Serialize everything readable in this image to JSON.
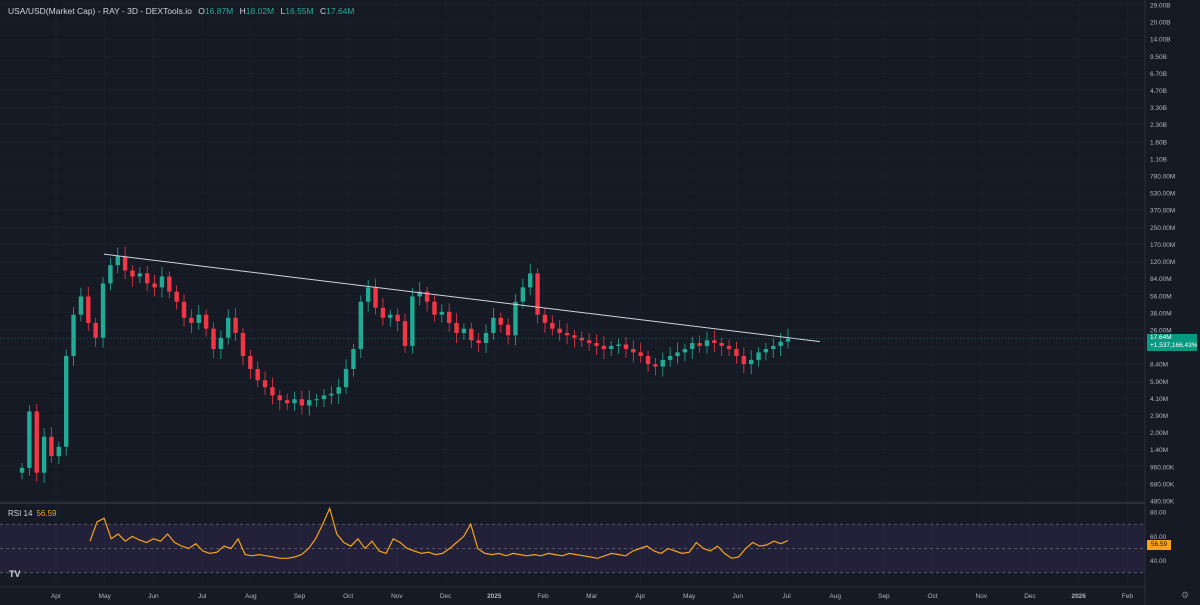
{
  "legend": {
    "symbol": "USA/USD(Market Cap) - RAY - 3D - DEXTools.io",
    "o_label": "O",
    "o_value": "16.87M",
    "h_label": "H",
    "h_value": "18.02M",
    "l_label": "L",
    "l_value": "16.55M",
    "c_label": "C",
    "c_value": "17.64M"
  },
  "rsi_legend": {
    "label": "RSI 14",
    "value": "56.59"
  },
  "price_badge": {
    "price": "17.64M",
    "change": "+1,537,166.43%"
  },
  "rsi_badge": "56.59",
  "logo_text": "TV",
  "colors": {
    "background": "#161a25",
    "up": "#22ab94",
    "down": "#f23645",
    "trendline": "#d1d4dc",
    "rsi_line": "#f7a21b",
    "rsi_band": "#7e57c2",
    "badge": "#089981"
  },
  "chart_data": [
    {
      "type": "candlestick",
      "scale": "log",
      "y_tick_labels": [
        "29.00B",
        "20.00B",
        "14.00B",
        "9.50B",
        "6.70B",
        "4.70B",
        "3.30B",
        "2.30B",
        "1.60B",
        "1.10B",
        "780.00M",
        "530.00M",
        "370.00M",
        "250.00M",
        "170.00M",
        "120.00M",
        "84.00M",
        "56.00M",
        "38.00M",
        "26.00M",
        "12.00M",
        "8.40M",
        "5.90M",
        "4.10M",
        "2.90M",
        "2.00M",
        "1.40M",
        "960.00K",
        "680.00K",
        "480.00K"
      ],
      "x_tick_labels": [
        "Apr",
        "May",
        "Jun",
        "Jul",
        "Aug",
        "Sep",
        "Oct",
        "Nov",
        "Dec",
        "2025",
        "Feb",
        "Mar",
        "Apr",
        "May",
        "Jun",
        "Jul",
        "Aug",
        "Sep",
        "Oct",
        "Nov",
        "Dec",
        "2026",
        "Feb"
      ],
      "trendline": {
        "from": "May 2024",
        "from_value": "~115M",
        "to": "Jul 2025",
        "to_value": "~17M"
      },
      "series_approx_close_millions": [
        1.0,
        3.5,
        0.9,
        2.0,
        1.3,
        1.6,
        12.0,
        30.0,
        45.0,
        25.0,
        18.0,
        60.0,
        90.0,
        110.0,
        80.0,
        70.0,
        75.0,
        60.0,
        55.0,
        70.0,
        50.0,
        40.0,
        28.0,
        25.0,
        30.0,
        22.0,
        14.0,
        18.0,
        28.0,
        20.0,
        12.0,
        9.0,
        7.0,
        6.0,
        5.0,
        4.5,
        4.2,
        4.6,
        4.0,
        4.5,
        4.6,
        5.0,
        5.2,
        6.0,
        9.0,
        14.0,
        40.0,
        55.0,
        35.0,
        28.0,
        30.0,
        26.0,
        15.0,
        45.0,
        50.0,
        40.0,
        30.0,
        32.0,
        25.0,
        20.0,
        22.0,
        17.0,
        16.0,
        20.0,
        28.0,
        24.0,
        19.0,
        40.0,
        55.0,
        75.0,
        30.0,
        25.0,
        22.0,
        20.0,
        19.0,
        18.0,
        17.0,
        16.0,
        15.0,
        14.0,
        15.0,
        15.5,
        14.0,
        13.0,
        12.0,
        10.0,
        9.5,
        11.0,
        12.0,
        13.0,
        14.0,
        16.0,
        15.0,
        17.0,
        16.0,
        15.0,
        14.0,
        12.0,
        10.0,
        11.0,
        13.0,
        14.0,
        15.0,
        16.5,
        17.64
      ]
    },
    {
      "type": "line",
      "y_tick_labels": [
        "80.00",
        "60.00",
        "40.00"
      ],
      "ylim": [
        20,
        85
      ],
      "band": [
        30,
        70
      ],
      "series": [
        {
          "values": [
            56,
            72,
            75,
            58,
            62,
            56,
            60,
            57,
            55,
            58,
            56,
            62,
            55,
            52,
            50,
            54,
            48,
            46,
            47,
            52,
            50,
            58,
            45,
            44,
            45,
            44,
            43,
            42,
            42,
            43,
            45,
            50,
            58,
            70,
            83,
            62,
            55,
            52,
            58,
            50,
            56,
            48,
            46,
            58,
            55,
            50,
            48,
            46,
            47,
            45,
            46,
            50,
            55,
            60,
            70,
            50,
            46,
            45,
            46,
            44,
            46,
            45,
            44,
            45,
            44,
            46,
            45,
            44,
            46,
            45,
            44,
            43,
            42,
            44,
            46,
            45,
            44,
            48,
            50,
            52,
            48,
            46,
            50,
            48,
            46,
            47,
            55,
            50,
            48,
            52,
            46,
            42,
            43,
            50,
            55,
            52,
            53,
            56,
            54,
            56.59
          ]
        }
      ]
    }
  ]
}
